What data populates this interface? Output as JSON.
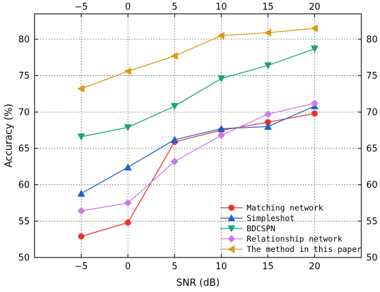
{
  "chart_data": {
    "type": "line",
    "x": [
      -5,
      0,
      5,
      10,
      15,
      20
    ],
    "xlabel": "SNR (dB)",
    "ylabel": "Accuracy (%)",
    "xlim": [
      -10,
      25
    ],
    "ylim": [
      50,
      83.5
    ],
    "xticks": [
      -5,
      0,
      5,
      10,
      15,
      20
    ],
    "yticks": [
      50,
      55,
      60,
      65,
      70,
      75,
      80
    ],
    "grid": true,
    "legend_position": "bottom-right",
    "series": [
      {
        "name": "Matching network",
        "color": "#e8332a",
        "marker": "circle",
        "values": [
          52.9,
          54.8,
          65.9,
          67.5,
          68.6,
          69.8
        ]
      },
      {
        "name": "Simpleshot",
        "color": "#1f5fd1",
        "marker": "triangle-up",
        "values": [
          58.8,
          62.4,
          66.2,
          67.7,
          68.0,
          70.8
        ]
      },
      {
        "name": "BDCSPN",
        "color": "#1aa377",
        "marker": "triangle-down",
        "values": [
          66.6,
          67.9,
          70.8,
          74.6,
          76.4,
          78.7
        ]
      },
      {
        "name": "Relationship network",
        "color": "#c77be8",
        "marker": "diamond",
        "values": [
          56.4,
          57.5,
          63.2,
          66.8,
          69.7,
          71.2
        ]
      },
      {
        "name": "The method in this paper",
        "color": "#d99a12",
        "marker": "triangle-left",
        "values": [
          73.2,
          75.6,
          77.7,
          80.5,
          80.9,
          81.5
        ]
      }
    ]
  }
}
